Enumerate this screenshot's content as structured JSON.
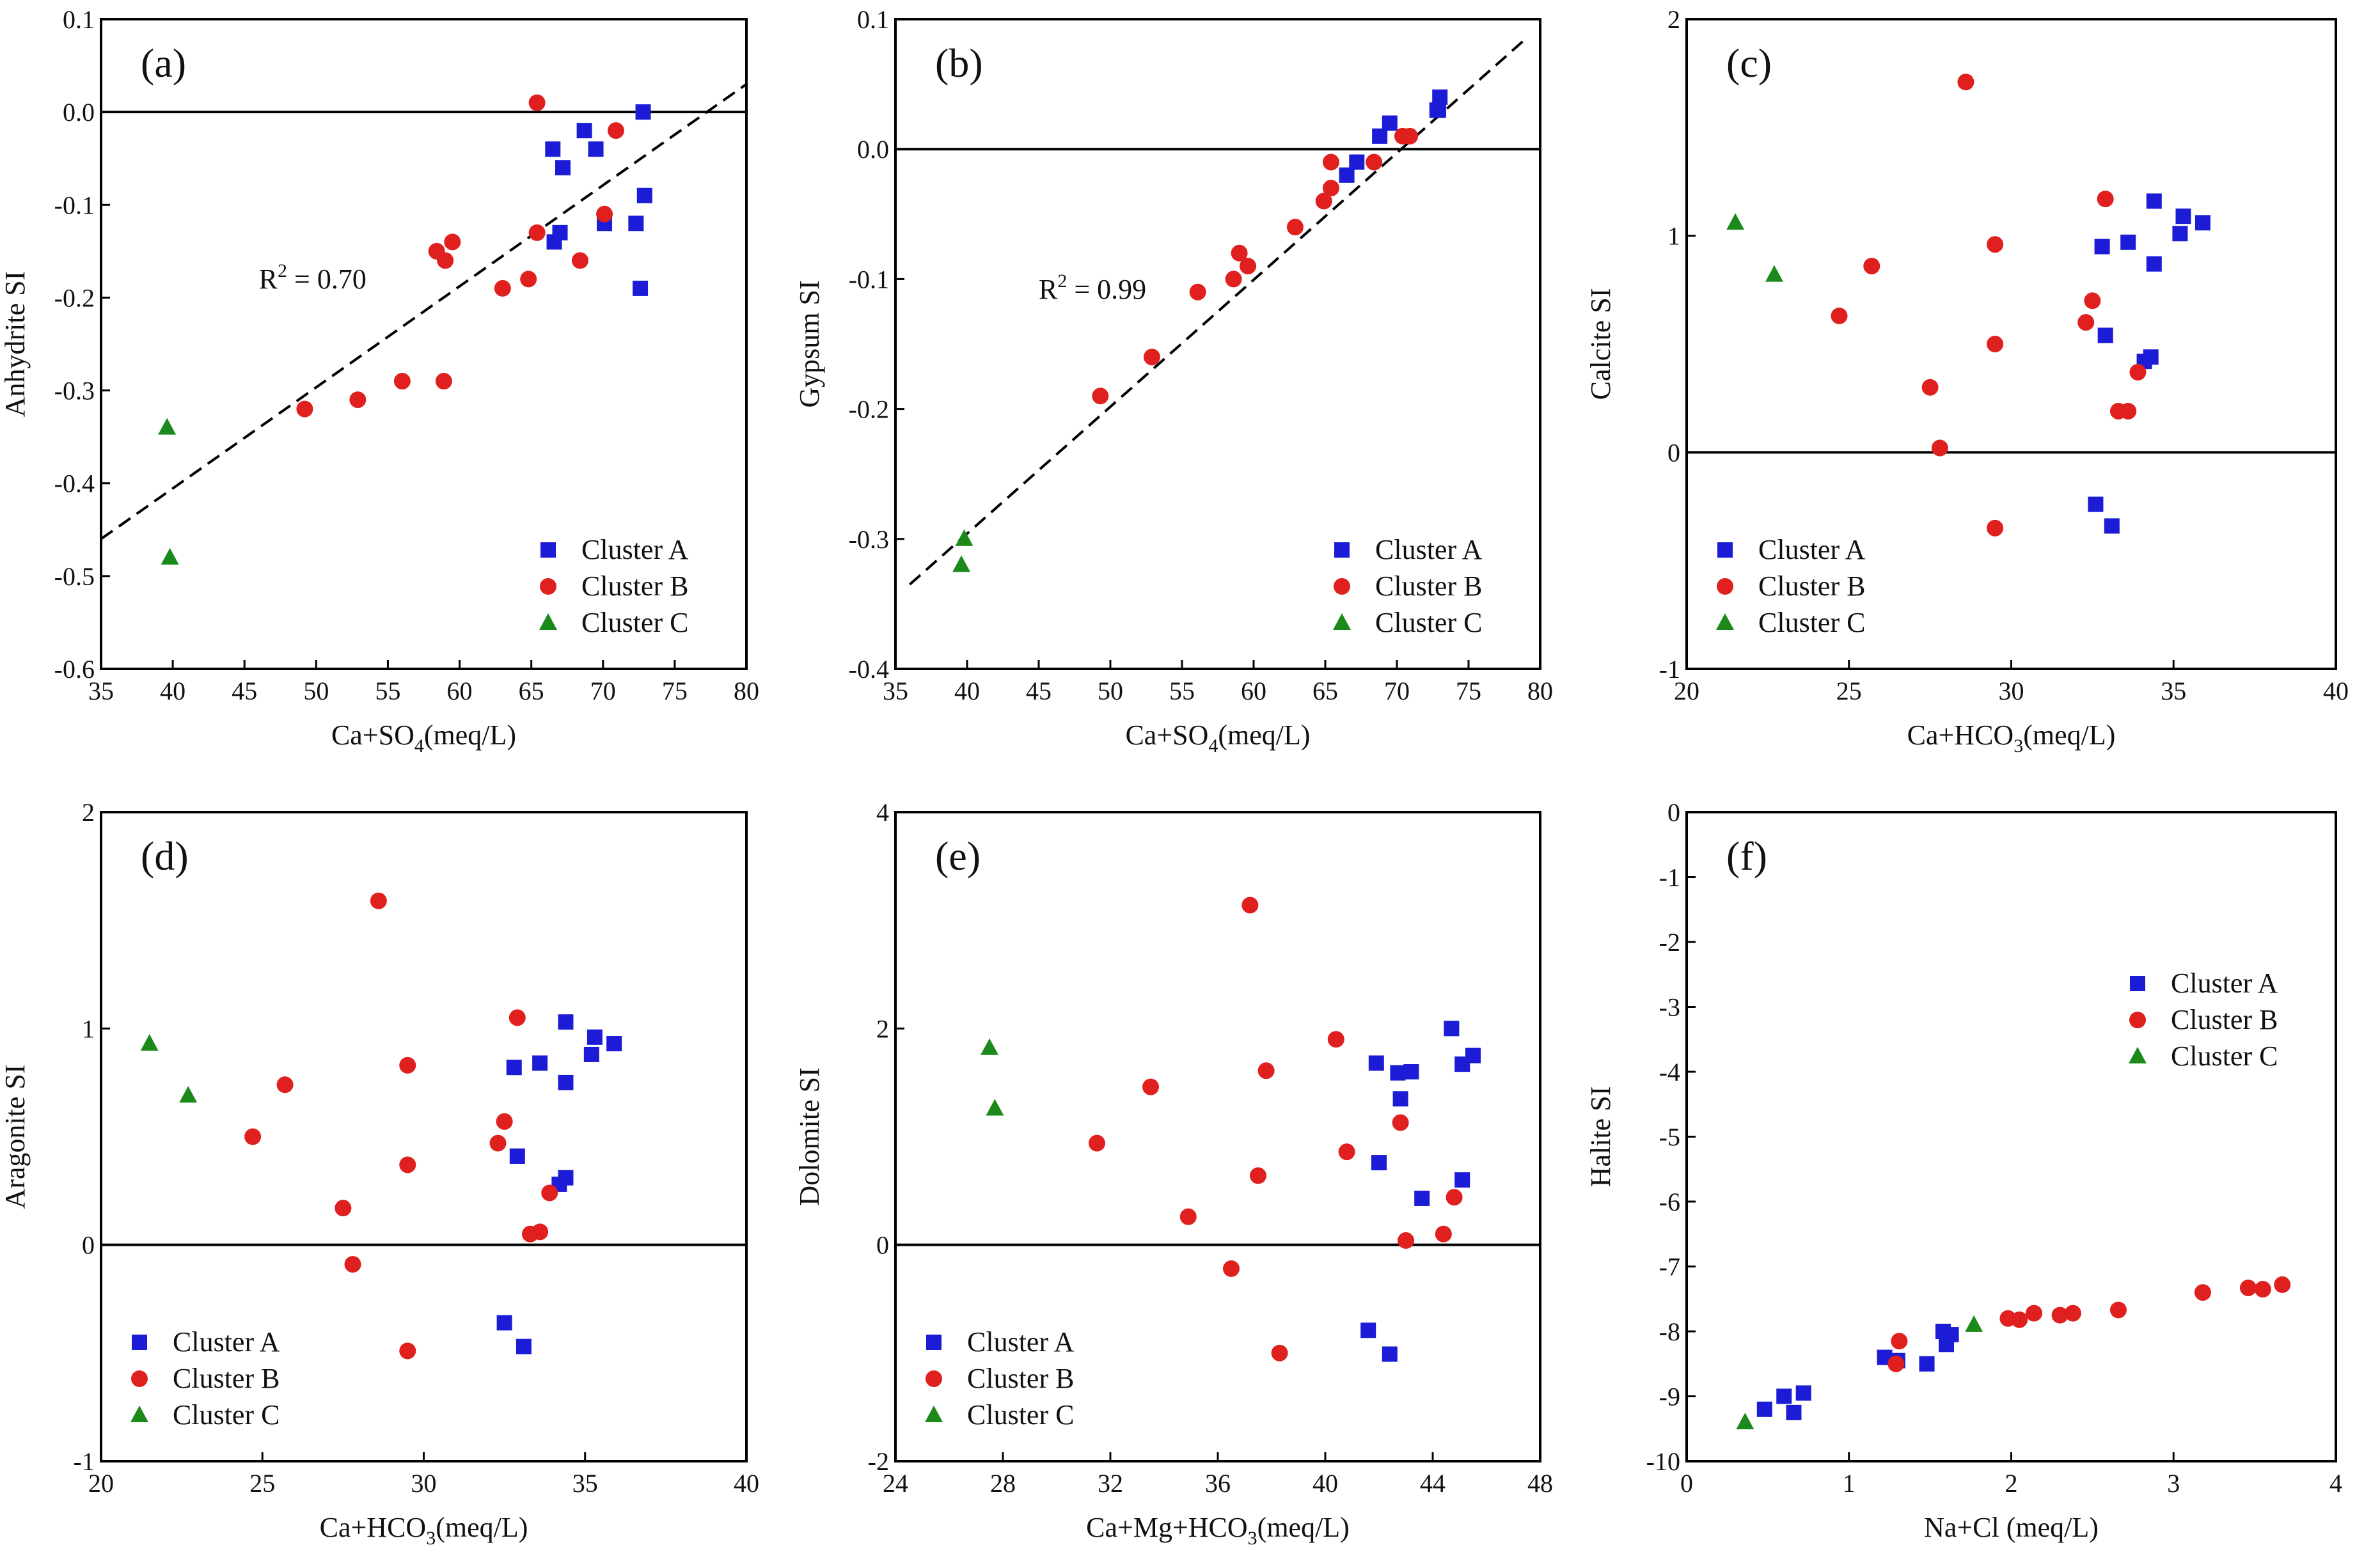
{
  "figure": {
    "description_free": true
  },
  "colors": {
    "cluster_a": "#1c1cd6",
    "cluster_b": "#e01f1f",
    "cluster_c": "#1b8a1b"
  },
  "chart_data": [
    {
      "id": "a",
      "type": "scatter",
      "panel_label": "(a)",
      "xlabel": "Ca+SO",
      "xlabel_sub": "4",
      "xlabel_tail": "(meq/L)",
      "ylabel": "Anhydrite SI",
      "xlim": [
        35,
        80
      ],
      "ylim": [
        -0.6,
        0.1
      ],
      "xticks": [
        35,
        40,
        45,
        50,
        55,
        60,
        65,
        70,
        75,
        80
      ],
      "yticks": [
        -0.6,
        -0.5,
        -0.4,
        -0.3,
        -0.2,
        -0.1,
        0.0,
        0.1
      ],
      "ytick_labels": [
        "-0.6",
        "-0.5",
        "-0.4",
        "-0.3",
        "-0.2",
        "-0.1",
        "0.0",
        "0.1"
      ],
      "hline": 0,
      "fit": {
        "x": [
          35,
          80
        ],
        "y": [
          -0.46,
          0.03
        ],
        "label": "R",
        "label_sup": "2",
        "label_tail": " = 0.70",
        "label_pos": [
          46,
          -0.19
        ]
      },
      "legend": {
        "entries": [
          "Cluster A",
          "Cluster B",
          "Cluster C"
        ],
        "position": "bottom-right"
      },
      "series": [
        {
          "name": "Cluster A",
          "marker": "square",
          "x": [
            66.5,
            67.0,
            67.2,
            68.7,
            69.5,
            70.1,
            72.8,
            72.3,
            72.6,
            72.9,
            66.6
          ],
          "y": [
            -0.04,
            -0.13,
            -0.06,
            -0.02,
            -0.04,
            -0.12,
            0.0,
            -0.12,
            -0.19,
            -0.09,
            -0.14
          ]
        },
        {
          "name": "Cluster B",
          "marker": "circle",
          "x": [
            65.4,
            70.9,
            65.4,
            58.4,
            59.5,
            59.0,
            63.0,
            64.8,
            68.4,
            70.1,
            49.2,
            52.9,
            56.0,
            58.9
          ],
          "y": [
            0.01,
            -0.02,
            -0.13,
            -0.15,
            -0.14,
            -0.16,
            -0.19,
            -0.18,
            -0.16,
            -0.11,
            -0.32,
            -0.31,
            -0.29,
            -0.29
          ]
        },
        {
          "name": "Cluster C",
          "marker": "triangle",
          "x": [
            39.6,
            39.8
          ],
          "y": [
            -0.34,
            -0.48
          ]
        }
      ]
    },
    {
      "id": "b",
      "type": "scatter",
      "panel_label": "(b)",
      "xlabel": "Ca+SO",
      "xlabel_sub": "4",
      "xlabel_tail": "(meq/L)",
      "ylabel": "Gypsum SI",
      "xlim": [
        35,
        80
      ],
      "ylim": [
        -0.4,
        0.1
      ],
      "xticks": [
        35,
        40,
        45,
        50,
        55,
        60,
        65,
        70,
        75,
        80
      ],
      "yticks": [
        -0.4,
        -0.3,
        -0.2,
        -0.1,
        0.0,
        0.1
      ],
      "ytick_labels": [
        "-0.4",
        "-0.3",
        "-0.2",
        "-0.1",
        "0.0",
        "0.1"
      ],
      "hline": 0,
      "fit": {
        "x": [
          36,
          79
        ],
        "y": [
          -0.335,
          0.085
        ],
        "label": "R",
        "label_sup": "2",
        "label_tail": " = 0.99",
        "label_pos": [
          45,
          -0.115
        ]
      },
      "legend": {
        "entries": [
          "Cluster A",
          "Cluster B",
          "Cluster C"
        ],
        "position": "bottom-right"
      },
      "series": [
        {
          "name": "Cluster A",
          "marker": "square",
          "x": [
            66.5,
            67.2,
            68.8,
            69.5,
            72.8,
            73.0,
            72.9
          ],
          "y": [
            -0.02,
            -0.01,
            0.01,
            0.02,
            0.03,
            0.04,
            0.03
          ]
        },
        {
          "name": "Cluster B",
          "marker": "circle",
          "x": [
            49.3,
            52.9,
            56.1,
            58.6,
            59.0,
            59.6,
            62.9,
            64.9,
            65.4,
            65.4,
            68.4,
            70.4,
            70.9
          ],
          "y": [
            -0.19,
            -0.16,
            -0.11,
            -0.1,
            -0.08,
            -0.09,
            -0.06,
            -0.04,
            -0.03,
            -0.01,
            -0.01,
            0.01,
            0.01
          ]
        },
        {
          "name": "Cluster C",
          "marker": "triangle",
          "x": [
            39.8,
            39.6
          ],
          "y": [
            -0.3,
            -0.32
          ]
        }
      ]
    },
    {
      "id": "c",
      "type": "scatter",
      "panel_label": "(c)",
      "xlabel": "Ca+HCO",
      "xlabel_sub": "3",
      "xlabel_tail": "(meq/L)",
      "ylabel": "Calcite SI",
      "xlim": [
        20,
        40
      ],
      "ylim": [
        -1,
        2
      ],
      "xticks": [
        20,
        25,
        30,
        35,
        40
      ],
      "yticks": [
        -1,
        0,
        1,
        2
      ],
      "ytick_labels": [
        "-1",
        "0",
        "1",
        "2"
      ],
      "hline": 0,
      "legend": {
        "entries": [
          "Cluster A",
          "Cluster B",
          "Cluster C"
        ],
        "position": "bottom-left"
      },
      "series": [
        {
          "name": "Cluster A",
          "marker": "square",
          "x": [
            32.8,
            33.6,
            34.4,
            35.3,
            35.9,
            35.2,
            34.4,
            32.9,
            34.3,
            34.1,
            32.6,
            33.1
          ],
          "y": [
            0.95,
            0.97,
            1.16,
            1.09,
            1.06,
            1.01,
            0.87,
            0.54,
            0.44,
            0.42,
            -0.24,
            -0.34
          ]
        },
        {
          "name": "Cluster B",
          "marker": "circle",
          "x": [
            28.6,
            32.9,
            29.5,
            25.7,
            24.7,
            32.5,
            32.3,
            29.5,
            27.5,
            33.9,
            33.3,
            33.6,
            27.8,
            29.5
          ],
          "y": [
            1.71,
            1.17,
            0.96,
            0.86,
            0.63,
            0.7,
            0.6,
            0.5,
            0.3,
            0.37,
            0.19,
            0.19,
            0.02,
            -0.35
          ]
        },
        {
          "name": "Cluster C",
          "marker": "triangle",
          "x": [
            21.5,
            22.7
          ],
          "y": [
            1.06,
            0.82
          ]
        }
      ]
    },
    {
      "id": "d",
      "type": "scatter",
      "panel_label": "(d)",
      "xlabel": "Ca+HCO",
      "xlabel_sub": "3",
      "xlabel_tail": "(meq/L)",
      "ylabel": "Aragonite SI",
      "xlim": [
        20,
        40
      ],
      "ylim": [
        -1,
        2
      ],
      "xticks": [
        20,
        25,
        30,
        35,
        40
      ],
      "yticks": [
        -1,
        0,
        1,
        2
      ],
      "ytick_labels": [
        "-1",
        "0",
        "1",
        "2"
      ],
      "hline": 0,
      "legend": {
        "entries": [
          "Cluster A",
          "Cluster B",
          "Cluster C"
        ],
        "position": "bottom-left"
      },
      "series": [
        {
          "name": "Cluster A",
          "marker": "square",
          "x": [
            32.8,
            33.6,
            34.4,
            35.3,
            35.9,
            35.2,
            34.4,
            32.9,
            34.4,
            34.2,
            32.5,
            33.1
          ],
          "y": [
            0.82,
            0.84,
            1.03,
            0.96,
            0.93,
            0.88,
            0.75,
            0.41,
            0.31,
            0.28,
            -0.36,
            -0.47
          ]
        },
        {
          "name": "Cluster B",
          "marker": "circle",
          "x": [
            28.6,
            32.9,
            29.5,
            25.7,
            24.7,
            32.5,
            32.3,
            29.5,
            27.5,
            33.9,
            33.3,
            33.6,
            27.8,
            29.5
          ],
          "y": [
            1.59,
            1.05,
            0.83,
            0.74,
            0.5,
            0.57,
            0.47,
            0.37,
            0.17,
            0.24,
            0.05,
            0.06,
            -0.09,
            -0.49
          ]
        },
        {
          "name": "Cluster C",
          "marker": "triangle",
          "x": [
            21.5,
            22.7
          ],
          "y": [
            0.93,
            0.69
          ]
        }
      ]
    },
    {
      "id": "e",
      "type": "scatter",
      "panel_label": "(e)",
      "xlabel": "Ca+Mg+HCO",
      "xlabel_sub": "3",
      "xlabel_tail": "(meq/L)",
      "ylabel": "Dolomite SI",
      "xlim": [
        24,
        48
      ],
      "ylim": [
        -2,
        4
      ],
      "xticks": [
        24,
        28,
        32,
        36,
        40,
        44,
        48
      ],
      "yticks": [
        -2,
        0,
        2,
        4
      ],
      "ytick_labels": [
        "-2",
        "0",
        "2",
        "4"
      ],
      "hline": 0,
      "legend": {
        "entries": [
          "Cluster A",
          "Cluster B",
          "Cluster C"
        ],
        "position": "bottom-left"
      },
      "series": [
        {
          "name": "Cluster A",
          "marker": "square",
          "x": [
            44.7,
            45.5,
            41.9,
            42.7,
            43.2,
            45.1,
            42.8,
            42.0,
            43.6,
            45.1,
            41.6,
            42.4
          ],
          "y": [
            2.0,
            1.75,
            1.68,
            1.59,
            1.6,
            1.67,
            1.35,
            0.76,
            0.43,
            0.6,
            -0.79,
            -1.01
          ]
        },
        {
          "name": "Cluster B",
          "marker": "circle",
          "x": [
            37.2,
            40.4,
            37.8,
            33.5,
            31.5,
            42.8,
            40.8,
            37.5,
            34.9,
            44.8,
            44.4,
            43.0,
            36.5,
            38.3
          ],
          "y": [
            3.14,
            1.9,
            1.61,
            1.46,
            0.94,
            1.13,
            0.86,
            0.64,
            0.26,
            0.44,
            0.1,
            0.04,
            -0.22,
            -1.0
          ]
        },
        {
          "name": "Cluster C",
          "marker": "triangle",
          "x": [
            27.5,
            27.7
          ],
          "y": [
            1.82,
            1.26
          ]
        }
      ]
    },
    {
      "id": "f",
      "type": "scatter",
      "panel_label": "(f)",
      "xlabel": "Na+Cl (meq/L)",
      "xlabel_sub": "",
      "xlabel_tail": "",
      "ylabel": "Halite SI",
      "xlim": [
        0,
        4
      ],
      "ylim": [
        -10,
        0
      ],
      "xticks": [
        0,
        1,
        2,
        3,
        4
      ],
      "yticks": [
        -10,
        -9,
        -8,
        -7,
        -6,
        -5,
        -4,
        -3,
        -2,
        -1,
        0
      ],
      "ytick_labels": [
        "-10",
        "-9",
        "-8",
        "-7",
        "-6",
        "-5",
        "-4",
        "-3",
        "-2",
        "-1",
        "0"
      ],
      "hline": null,
      "legend": {
        "entries": [
          "Cluster A",
          "Cluster B",
          "Cluster C"
        ],
        "position": "top-right"
      },
      "series": [
        {
          "name": "Cluster A",
          "marker": "square",
          "x": [
            0.48,
            0.6,
            0.66,
            0.72,
            1.22,
            1.3,
            1.48,
            1.58,
            1.6,
            1.63
          ],
          "y": [
            -9.2,
            -9.0,
            -9.25,
            -8.95,
            -8.4,
            -8.45,
            -8.5,
            -8.0,
            -8.2,
            -8.05
          ]
        },
        {
          "name": "Cluster B",
          "marker": "circle",
          "x": [
            1.29,
            1.31,
            1.98,
            2.05,
            2.14,
            2.3,
            2.38,
            2.66,
            3.18,
            3.46,
            3.55,
            3.67
          ],
          "y": [
            -8.5,
            -8.15,
            -7.8,
            -7.82,
            -7.72,
            -7.75,
            -7.72,
            -7.67,
            -7.4,
            -7.33,
            -7.35,
            -7.28
          ]
        },
        {
          "name": "Cluster C",
          "marker": "triangle",
          "x": [
            0.36,
            1.77
          ],
          "y": [
            -9.4,
            -7.9
          ]
        }
      ]
    }
  ]
}
